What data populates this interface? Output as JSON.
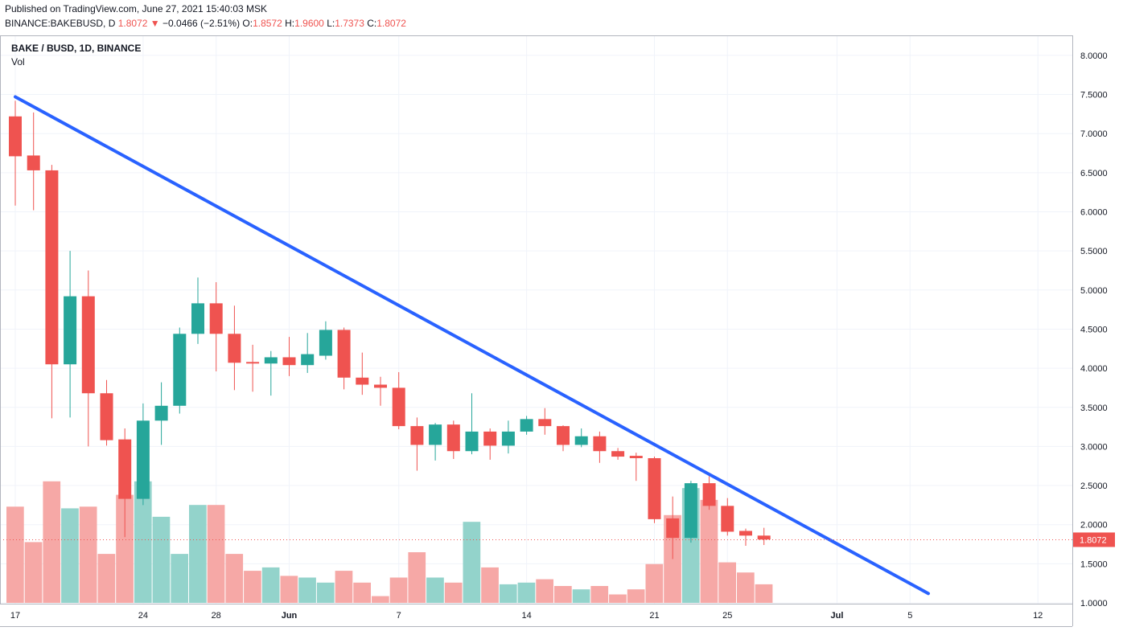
{
  "header": {
    "published": "Published on TradingView.com, June 27, 2021 15:40:03 MSK",
    "symbol": "BINANCE:BAKEBUSD, D",
    "last": "1.8072",
    "arrow": "▼",
    "change": "−0.0466 (−2.51%)",
    "o_label": "O:",
    "o": "1.8572",
    "h_label": "H:",
    "h": "1.9600",
    "l_label": "L:",
    "l": "1.7373",
    "c_label": "C:",
    "c": "1.8072"
  },
  "legend": {
    "title": "BAKE / BUSD, 1D, BINANCE",
    "volume_label": "Vol"
  },
  "chart_data": {
    "type": "candlestick",
    "up_color": "#26a69a",
    "down_color": "#ef5350",
    "trendline_color": "#2962ff",
    "ylim": [
      0.95,
      8.2
    ],
    "y_ticks": [
      "8.0000",
      "7.5000",
      "7.0000",
      "6.5000",
      "6.0000",
      "5.5000",
      "5.0000",
      "4.5000",
      "4.0000",
      "3.5000",
      "3.0000",
      "2.5000",
      "2.0000",
      "1.5000",
      "1.0000"
    ],
    "x_ticks": [
      "17",
      "24",
      "28",
      "Jun",
      "7",
      "14",
      "21",
      "25",
      "Jul",
      "5",
      "12"
    ],
    "current_price": "1.8072",
    "candles": [
      {
        "date": "May 17",
        "o": 7.22,
        "h": 7.42,
        "l": 6.08,
        "c": 6.71
      },
      {
        "date": "May 18",
        "o": 6.72,
        "h": 7.27,
        "l": 6.02,
        "c": 6.53
      },
      {
        "date": "May 19",
        "o": 6.53,
        "h": 6.6,
        "l": 3.36,
        "c": 4.05
      },
      {
        "date": "May 20",
        "o": 4.05,
        "h": 5.5,
        "l": 3.37,
        "c": 4.92
      },
      {
        "date": "May 21",
        "o": 4.92,
        "h": 5.25,
        "l": 3.0,
        "c": 3.68
      },
      {
        "date": "May 22",
        "o": 3.68,
        "h": 3.85,
        "l": 3.01,
        "c": 3.08
      },
      {
        "date": "May 23",
        "o": 3.09,
        "h": 3.23,
        "l": 1.84,
        "c": 2.33
      },
      {
        "date": "May 24",
        "o": 2.33,
        "h": 3.55,
        "l": 2.25,
        "c": 3.33
      },
      {
        "date": "May 25",
        "o": 3.33,
        "h": 3.82,
        "l": 3.02,
        "c": 3.52
      },
      {
        "date": "May 26",
        "o": 3.52,
        "h": 4.52,
        "l": 3.42,
        "c": 4.44
      },
      {
        "date": "May 27",
        "o": 4.44,
        "h": 5.16,
        "l": 4.31,
        "c": 4.83
      },
      {
        "date": "May 28",
        "o": 4.83,
        "h": 5.1,
        "l": 3.96,
        "c": 4.44
      },
      {
        "date": "May 29",
        "o": 4.44,
        "h": 4.8,
        "l": 3.72,
        "c": 4.07
      },
      {
        "date": "May 30",
        "o": 4.08,
        "h": 4.3,
        "l": 3.7,
        "c": 4.06
      },
      {
        "date": "May 31",
        "o": 4.06,
        "h": 4.22,
        "l": 3.65,
        "c": 4.14
      },
      {
        "date": "Jun 1",
        "o": 4.14,
        "h": 4.4,
        "l": 3.9,
        "c": 4.04
      },
      {
        "date": "Jun 2",
        "o": 4.04,
        "h": 4.45,
        "l": 3.94,
        "c": 4.18
      },
      {
        "date": "Jun 3",
        "o": 4.16,
        "h": 4.6,
        "l": 4.11,
        "c": 4.49
      },
      {
        "date": "Jun 4",
        "o": 4.49,
        "h": 4.52,
        "l": 3.73,
        "c": 3.88
      },
      {
        "date": "Jun 5",
        "o": 3.88,
        "h": 4.2,
        "l": 3.66,
        "c": 3.79
      },
      {
        "date": "Jun 6",
        "o": 3.79,
        "h": 3.89,
        "l": 3.52,
        "c": 3.75
      },
      {
        "date": "Jun 7",
        "o": 3.75,
        "h": 3.95,
        "l": 3.22,
        "c": 3.26
      },
      {
        "date": "Jun 8",
        "o": 3.26,
        "h": 3.37,
        "l": 2.69,
        "c": 3.02
      },
      {
        "date": "Jun 9",
        "o": 3.02,
        "h": 3.3,
        "l": 2.82,
        "c": 3.28
      },
      {
        "date": "Jun 10",
        "o": 3.28,
        "h": 3.33,
        "l": 2.84,
        "c": 2.94
      },
      {
        "date": "Jun 11",
        "o": 2.94,
        "h": 3.68,
        "l": 2.9,
        "c": 3.19
      },
      {
        "date": "Jun 12",
        "o": 3.19,
        "h": 3.23,
        "l": 2.83,
        "c": 3.01
      },
      {
        "date": "Jun 13",
        "o": 3.01,
        "h": 3.33,
        "l": 2.91,
        "c": 3.19
      },
      {
        "date": "Jun 14",
        "o": 3.19,
        "h": 3.39,
        "l": 3.15,
        "c": 3.35
      },
      {
        "date": "Jun 15",
        "o": 3.35,
        "h": 3.49,
        "l": 3.15,
        "c": 3.26
      },
      {
        "date": "Jun 16",
        "o": 3.26,
        "h": 3.27,
        "l": 2.94,
        "c": 3.02
      },
      {
        "date": "Jun 17",
        "o": 3.02,
        "h": 3.23,
        "l": 2.99,
        "c": 3.13
      },
      {
        "date": "Jun 18",
        "o": 3.13,
        "h": 3.19,
        "l": 2.79,
        "c": 2.94
      },
      {
        "date": "Jun 19",
        "o": 2.94,
        "h": 2.98,
        "l": 2.83,
        "c": 2.87
      },
      {
        "date": "Jun 20",
        "o": 2.88,
        "h": 2.92,
        "l": 2.56,
        "c": 2.85
      },
      {
        "date": "Jun 21",
        "o": 2.85,
        "h": 2.87,
        "l": 2.02,
        "c": 2.07
      },
      {
        "date": "Jun 22",
        "o": 2.08,
        "h": 2.36,
        "l": 1.56,
        "c": 1.83
      },
      {
        "date": "Jun 23",
        "o": 1.83,
        "h": 2.56,
        "l": 1.77,
        "c": 2.53
      },
      {
        "date": "Jun 24",
        "o": 2.53,
        "h": 2.62,
        "l": 2.19,
        "c": 2.24
      },
      {
        "date": "Jun 25",
        "o": 2.24,
        "h": 2.34,
        "l": 1.86,
        "c": 1.91
      },
      {
        "date": "Jun 26",
        "o": 1.92,
        "h": 1.95,
        "l": 1.73,
        "c": 1.86
      },
      {
        "date": "Jun 27",
        "o": 1.86,
        "h": 1.96,
        "l": 1.74,
        "c": 1.81
      }
    ],
    "volume_relative": [
      0.57,
      0.36,
      0.72,
      0.56,
      0.57,
      0.29,
      0.64,
      0.72,
      0.51,
      0.29,
      0.58,
      0.58,
      0.29,
      0.19,
      0.21,
      0.16,
      0.15,
      0.12,
      0.19,
      0.12,
      0.04,
      0.15,
      0.3,
      0.15,
      0.12,
      0.48,
      0.21,
      0.11,
      0.12,
      0.14,
      0.1,
      0.08,
      0.1,
      0.05,
      0.08,
      0.23,
      0.52,
      0.68,
      0.61,
      0.24,
      0.18,
      0.11
    ],
    "trendline": [
      {
        "date": "May 17",
        "price": 7.47
      },
      {
        "date": "Jul 6",
        "price": 1.12
      }
    ]
  }
}
